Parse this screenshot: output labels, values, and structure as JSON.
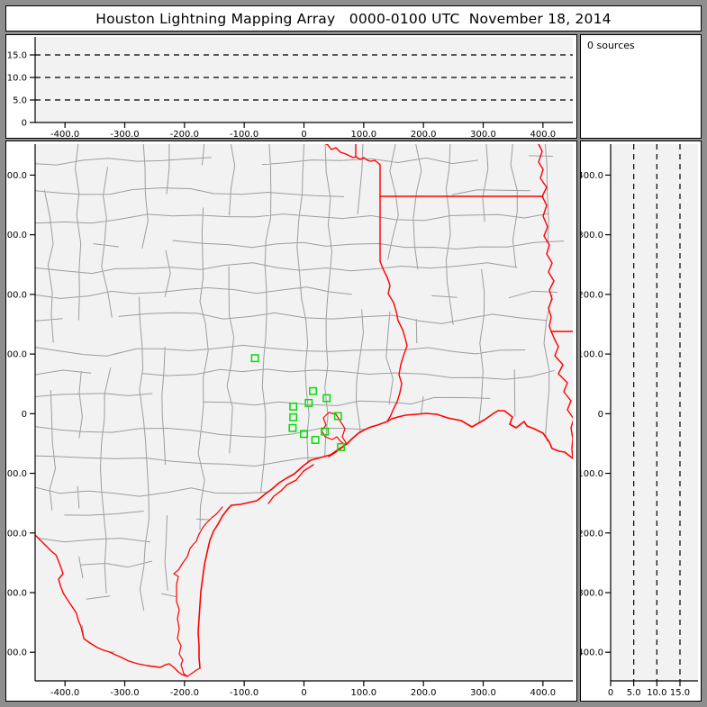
{
  "title": "Houston Lightning Mapping Array   0000-0100 UTC  November 18, 2014",
  "sources_label": "0 sources",
  "colors": {
    "frame": "#8e8e8e",
    "plot_bg": "#f2f2f2",
    "panel_bg": "#ffffff",
    "county_line": "#9d9d9d",
    "state_border": "#ff0000",
    "station_marker": "#00dd00",
    "gridline": "#000000"
  },
  "axes": {
    "ew_km": {
      "label_note": "east-west distance (km)",
      "ticks": [
        {
          "v": -400,
          "t": "-400.0"
        },
        {
          "v": -300,
          "t": "-300.0"
        },
        {
          "v": -200,
          "t": "-200.0"
        },
        {
          "v": -100,
          "t": "-100.0"
        },
        {
          "v": 0,
          "t": "0"
        },
        {
          "v": 100,
          "t": "100.0"
        },
        {
          "v": 200,
          "t": "200.0"
        },
        {
          "v": 300,
          "t": "300.0"
        },
        {
          "v": 400,
          "t": "400.0"
        }
      ],
      "range": [
        -450,
        450
      ]
    },
    "ns_km": {
      "label_note": "north-south distance (km)",
      "ticks": [
        {
          "v": 400,
          "t": "400.0"
        },
        {
          "v": 300,
          "t": "300.0"
        },
        {
          "v": 200,
          "t": "200.0"
        },
        {
          "v": 100,
          "t": "100.0"
        },
        {
          "v": 0,
          "t": "0"
        },
        {
          "v": -100,
          "t": "-100.0"
        },
        {
          "v": -200,
          "t": "-200.0"
        },
        {
          "v": -300,
          "t": "-300.0"
        },
        {
          "v": -400,
          "t": "-400.0"
        }
      ],
      "range": [
        -448,
        452
      ]
    },
    "alt_km": {
      "label_note": "altitude (km)",
      "ticks": [
        {
          "v": 0,
          "t": "0"
        },
        {
          "v": 5,
          "t": "5.0"
        },
        {
          "v": 10,
          "t": "10.0"
        },
        {
          "v": 15,
          "t": "15.0"
        }
      ],
      "gridlines": [
        5,
        10,
        15
      ],
      "range": [
        0,
        19
      ]
    }
  },
  "chart_data": {
    "type": "scatter",
    "title": "Houston Lightning Mapping Array   0000-0100 UTC  November 18, 2014",
    "sources_count": 0,
    "legend": "green squares = LMA station locations; no lightning sources plotted",
    "station_locations_km": [
      {
        "x": -82,
        "y": 93
      },
      {
        "x": 15,
        "y": 38
      },
      {
        "x": 8,
        "y": 18
      },
      {
        "x": 38,
        "y": 26
      },
      {
        "x": -18,
        "y": 12
      },
      {
        "x": 57,
        "y": -4
      },
      {
        "x": -18,
        "y": -6
      },
      {
        "x": -19,
        "y": -24
      },
      {
        "x": 35,
        "y": -30
      },
      {
        "x": 0,
        "y": -34
      },
      {
        "x": 19,
        "y": -44
      },
      {
        "x": 62,
        "y": -56
      }
    ],
    "map_axis_range_km": [
      -450,
      450
    ],
    "altitude_axis_range_km": [
      0,
      19
    ],
    "altitude_gridlines_km": [
      5,
      10,
      15
    ],
    "grid": "dashed",
    "legend_position": "none"
  }
}
